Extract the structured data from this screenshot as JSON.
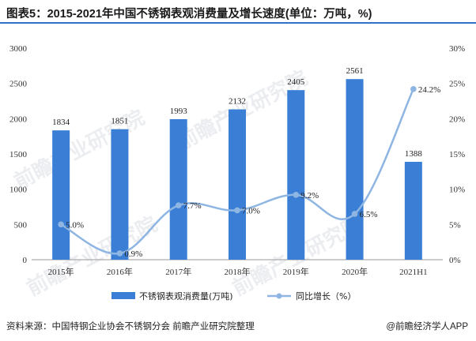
{
  "title": "图表5：2015-2021年中国不锈钢表观消费量及增长速度(单位：万吨，%)",
  "source": "资料来源：中国特钢企业协会不锈钢分会 前瞻产业研究院整理",
  "credit": "@前瞻经济学人APP",
  "watermark": "前瞻产业研究院",
  "colors": {
    "bar": "#3a7fd5",
    "line": "#8fb6e3",
    "rule": "#2f73c9"
  },
  "chart_data": {
    "type": "bar",
    "categories": [
      "2015年",
      "2016年",
      "2017年",
      "2018年",
      "2019年",
      "2020年",
      "2021H1"
    ],
    "series": [
      {
        "name": "不锈钢表观消费量(万吨)",
        "type": "bar",
        "axis": "left",
        "values": [
          1834,
          1851,
          1993,
          2132,
          2405,
          2561,
          1388
        ],
        "labels": [
          "1834",
          "1851",
          "1993",
          "2132",
          "2405",
          "2561",
          "1388"
        ]
      },
      {
        "name": "同比增长（%）",
        "type": "line",
        "axis": "right",
        "values": [
          5.0,
          0.9,
          7.7,
          7.0,
          9.2,
          6.5,
          24.2
        ],
        "labels": [
          "5.0%",
          "0.9%",
          "7.7%",
          "7.0%",
          "9.2%",
          "6.5%",
          "24.2%"
        ]
      }
    ],
    "y_left": {
      "min": 0,
      "max": 3000,
      "ticks": [
        "0",
        "500",
        "1000",
        "1500",
        "2000",
        "2500",
        "3000"
      ]
    },
    "y_right": {
      "min": 0,
      "max": 30,
      "ticks": [
        "0%",
        "5%",
        "10%",
        "15%",
        "20%",
        "25%",
        "30%"
      ]
    },
    "grid": false,
    "legend": "bottom"
  }
}
